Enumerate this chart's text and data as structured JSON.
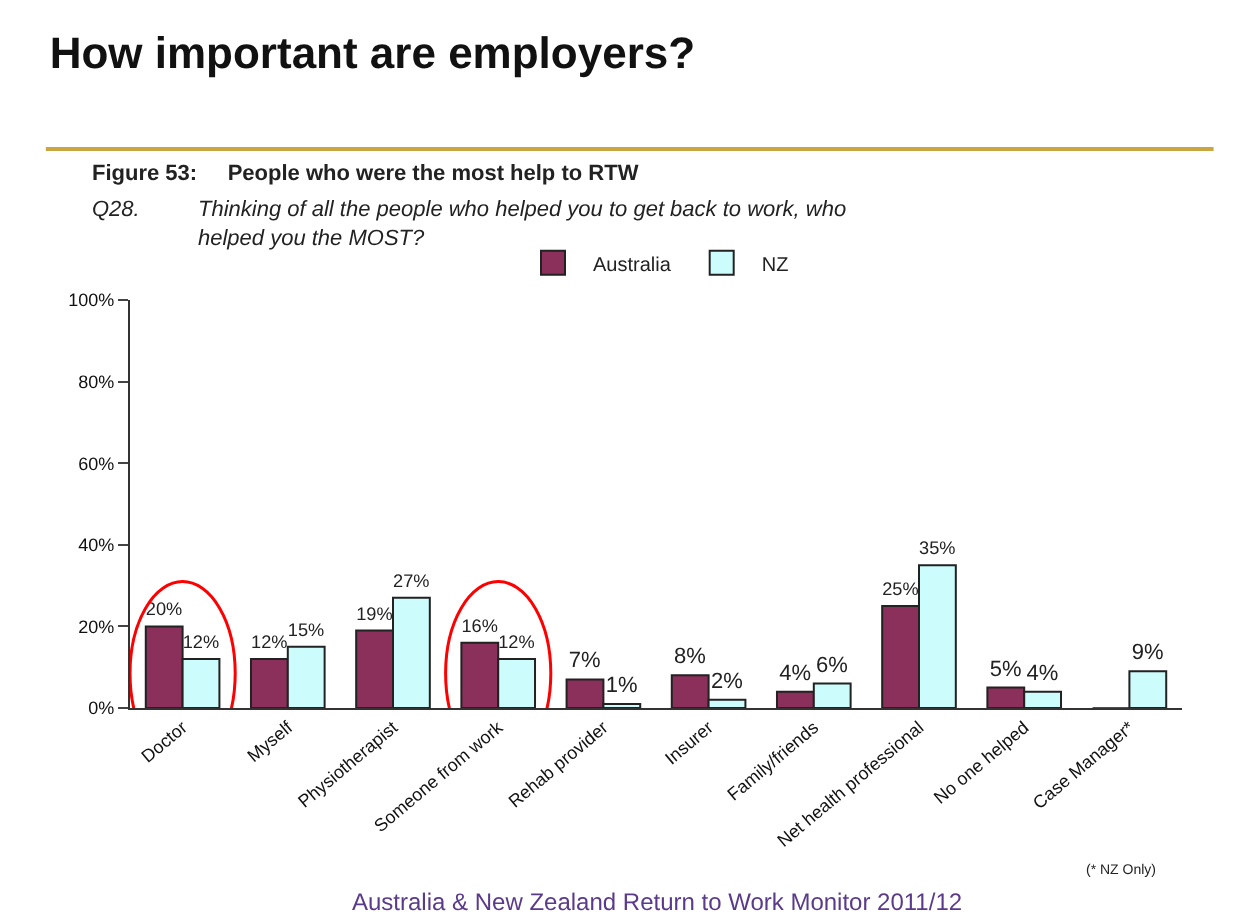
{
  "chart_data": {
    "type": "bar",
    "title": "How important are employers?",
    "subtitle": "Figure 53:     People who were the most help to RTW",
    "annotations": [
      "Q28.",
      "Thinking of all the people who helped you to get back to work, who helped you the MOST?",
      "(* NZ Only)",
      "Australia & New Zealand Return to Work Monitor 2011/12"
    ],
    "categories": [
      "Doctor",
      "Myself",
      "Physiotherapist",
      "Someone from work",
      "Rehab provider",
      "Insurer",
      "Family/friends",
      "Net health professional",
      "No one helped",
      "Case Manager*"
    ],
    "series": [
      {
        "name": "Australia",
        "color": "#8b2f5b",
        "values": [
          20,
          12,
          19,
          16,
          7,
          8,
          4,
          25,
          5,
          0
        ],
        "value_labels": [
          "20%",
          "12%",
          "19%",
          "16%",
          "7%",
          "8%",
          "4%",
          "25%",
          "5%",
          null
        ]
      },
      {
        "name": "NZ",
        "color": "#ccfcfc",
        "values": [
          12,
          15,
          27,
          12,
          1,
          2,
          6,
          35,
          4,
          9
        ],
        "value_labels": [
          "12%",
          "15%",
          "27%",
          "12%",
          "1%",
          "2%",
          "6%",
          "35%",
          "4%",
          "9%"
        ]
      }
    ],
    "ylim": [
      0,
      100
    ],
    "yticks": [
      {
        "value": 0,
        "label": "0%"
      },
      {
        "value": 20,
        "label": "20%"
      },
      {
        "value": 40,
        "label": "40%"
      },
      {
        "value": 60,
        "label": "60%"
      },
      {
        "value": 80,
        "label": "80%"
      },
      {
        "value": 100,
        "label": "100%"
      }
    ],
    "legend": "top"
  }
}
